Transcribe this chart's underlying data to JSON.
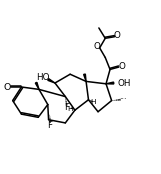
{
  "bg": "#ffffff",
  "lc": "#000000",
  "lw": 1.1,
  "fs": 5.8,
  "figsize": [
    1.61,
    1.74
  ],
  "dpi": 100,
  "xlim": [
    0.0,
    10.0
  ],
  "ylim": [
    0.0,
    10.8
  ]
}
